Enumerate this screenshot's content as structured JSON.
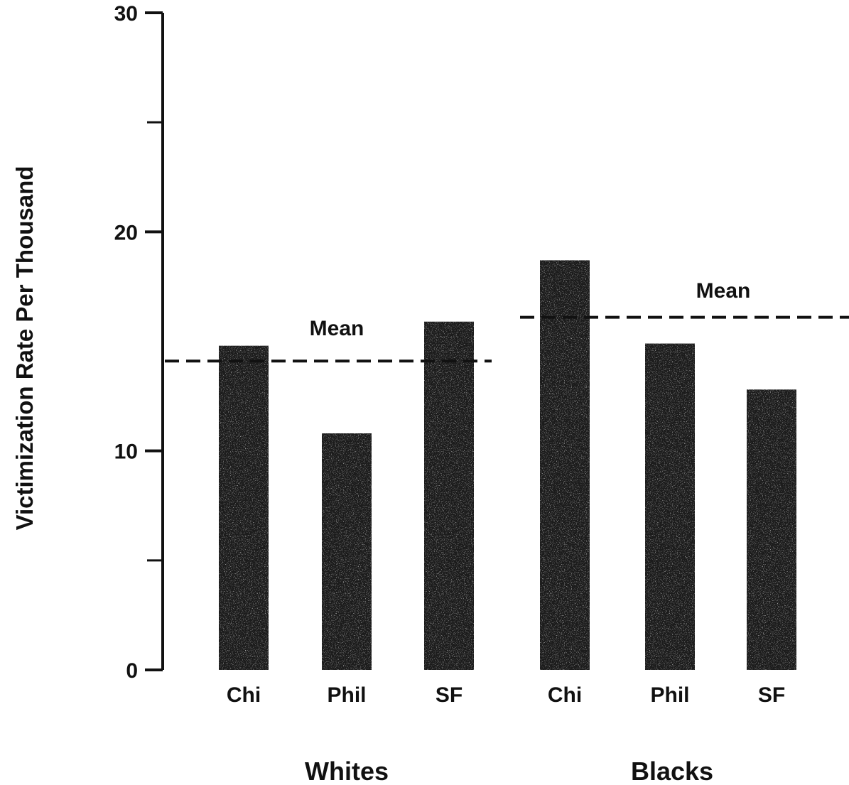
{
  "chart_data": {
    "type": "bar",
    "title": "",
    "ylabel": "Victimization Rate Per Thousand",
    "xlabel": "",
    "ylim": [
      0,
      30
    ],
    "y_ticks_labeled": [
      "0",
      "10",
      "20",
      "30"
    ],
    "y_ticks_minor": [
      5,
      25
    ],
    "grid": false,
    "groups": [
      {
        "name": "Whites",
        "categories": [
          "Chi",
          "Phil",
          "SF"
        ],
        "values": [
          14.8,
          10.8,
          15.9
        ],
        "mean": 14.1,
        "mean_label": "Mean"
      },
      {
        "name": "Blacks",
        "categories": [
          "Chi",
          "Phil",
          "SF"
        ],
        "values": [
          18.7,
          14.9,
          12.8
        ],
        "mean": 16.1,
        "mean_label": "Mean"
      }
    ],
    "colors": {
      "bar": "#1c1c1c",
      "axis": "#111111",
      "text": "#111111"
    }
  }
}
